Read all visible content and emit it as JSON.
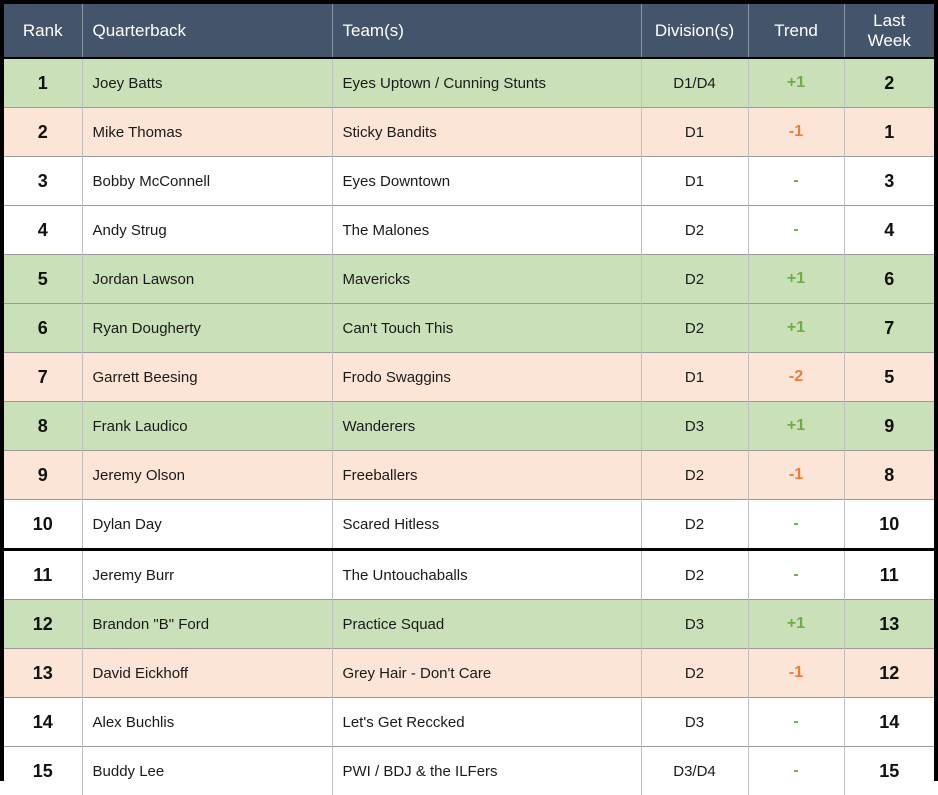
{
  "colors": {
    "header_bg": "#44546A",
    "header_text": "#FFFFFF",
    "up_row_bg": "#C9E0B8",
    "down_row_bg": "#FCE4D6",
    "same_row_bg": "#FFFFFF",
    "trend_up_text": "#70AD47",
    "trend_down_text": "#ED7D31"
  },
  "chart_data": {
    "type": "table",
    "columns": [
      "Rank",
      "Quarterback",
      "Team(s)",
      "Division(s)",
      "Trend",
      "Last Week"
    ],
    "rows": [
      {
        "rank": "1",
        "quarterback": "Joey Batts",
        "teams": "Eyes Uptown / Cunning Stunts",
        "divisions": "D1/D4",
        "trend": "+1",
        "last_week": "2",
        "direction": "up"
      },
      {
        "rank": "2",
        "quarterback": "Mike Thomas",
        "teams": "Sticky Bandits",
        "divisions": "D1",
        "trend": "-1",
        "last_week": "1",
        "direction": "down"
      },
      {
        "rank": "3",
        "quarterback": "Bobby McConnell",
        "teams": "Eyes Downtown",
        "divisions": "D1",
        "trend": "-",
        "last_week": "3",
        "direction": "same"
      },
      {
        "rank": "4",
        "quarterback": "Andy Strug",
        "teams": "The Malones",
        "divisions": "D2",
        "trend": "-",
        "last_week": "4",
        "direction": "same"
      },
      {
        "rank": "5",
        "quarterback": "Jordan Lawson",
        "teams": "Mavericks",
        "divisions": "D2",
        "trend": "+1",
        "last_week": "6",
        "direction": "up"
      },
      {
        "rank": "6",
        "quarterback": "Ryan Dougherty",
        "teams": "Can't Touch This",
        "divisions": "D2",
        "trend": "+1",
        "last_week": "7",
        "direction": "up"
      },
      {
        "rank": "7",
        "quarterback": "Garrett Beesing",
        "teams": "Frodo Swaggins",
        "divisions": "D1",
        "trend": "-2",
        "last_week": "5",
        "direction": "down"
      },
      {
        "rank": "8",
        "quarterback": "Frank Laudico",
        "teams": "Wanderers",
        "divisions": "D3",
        "trend": "+1",
        "last_week": "9",
        "direction": "up"
      },
      {
        "rank": "9",
        "quarterback": "Jeremy Olson",
        "teams": "Freeballers",
        "divisions": "D2",
        "trend": "-1",
        "last_week": "8",
        "direction": "down"
      },
      {
        "rank": "10",
        "quarterback": "Dylan Day",
        "teams": "Scared Hitless",
        "divisions": "D2",
        "trend": "-",
        "last_week": "10",
        "direction": "same"
      },
      {
        "rank": "11",
        "quarterback": "Jeremy Burr",
        "teams": "The Untouchaballs",
        "divisions": "D2",
        "trend": "-",
        "last_week": "11",
        "direction": "same"
      },
      {
        "rank": "12",
        "quarterback": "Brandon \"B\" Ford",
        "teams": "Practice Squad",
        "divisions": "D3",
        "trend": "+1",
        "last_week": "13",
        "direction": "up"
      },
      {
        "rank": "13",
        "quarterback": "David Eickhoff",
        "teams": "Grey Hair - Don't Care",
        "divisions": "D2",
        "trend": "-1",
        "last_week": "12",
        "direction": "down"
      },
      {
        "rank": "14",
        "quarterback": "Alex Buchlis",
        "teams": "Let's Get Reccked",
        "divisions": "D3",
        "trend": "-",
        "last_week": "14",
        "direction": "same"
      },
      {
        "rank": "15",
        "quarterback": "Buddy Lee",
        "teams": "PWI / BDJ & the ILFers",
        "divisions": "D3/D4",
        "trend": "-",
        "last_week": "15",
        "direction": "same"
      }
    ],
    "layout": {
      "thick_divider_after_rank": "10",
      "grid": "on",
      "row_color_rule": "up=green, down=peach, same=white"
    }
  }
}
